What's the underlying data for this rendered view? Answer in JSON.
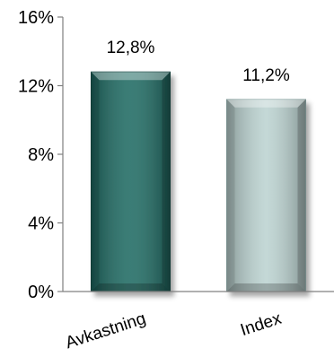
{
  "chart_data": {
    "type": "bar",
    "categories": [
      "Avkastning",
      "Index"
    ],
    "values": [
      12.8,
      11.2
    ],
    "data_labels": [
      "12,8%",
      "11,2%"
    ],
    "ylim": [
      0,
      16
    ],
    "yticks": [
      0,
      4,
      8,
      12,
      16
    ],
    "ytick_labels": [
      "0%",
      "4%",
      "8%",
      "12%",
      "16%"
    ],
    "title": "",
    "xlabel": "",
    "ylabel": "",
    "grid": false,
    "legend": false,
    "bar_colors": [
      "#1f6b63",
      "#bcd3d1"
    ],
    "bar_edge_colors": [
      "#124a44",
      "#93aeac"
    ]
  }
}
